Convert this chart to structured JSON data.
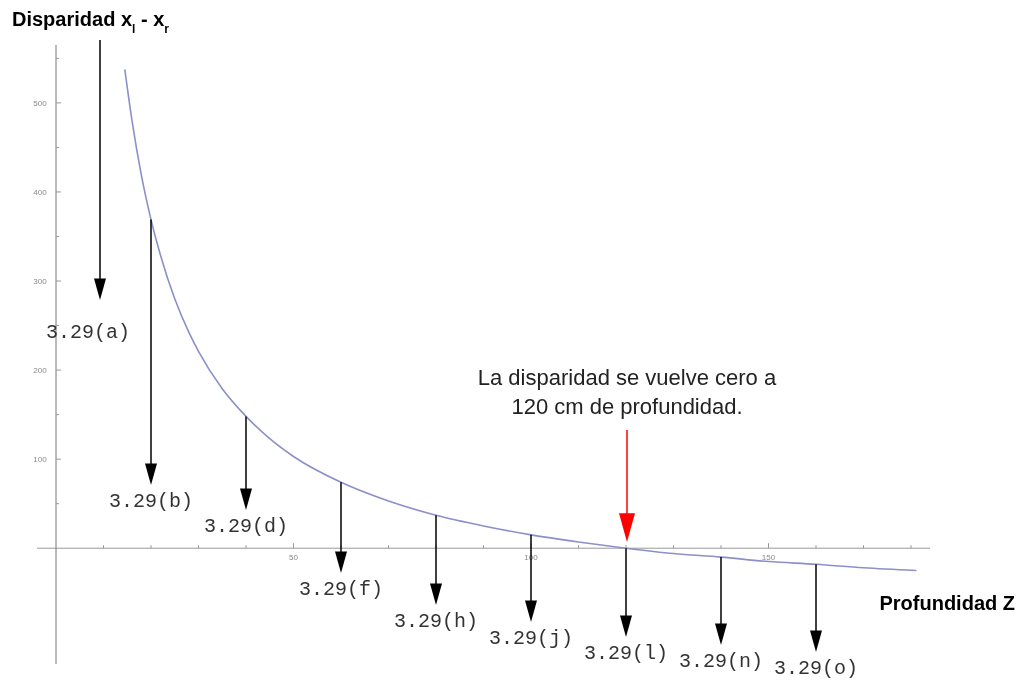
{
  "chart_data": {
    "type": "line",
    "ylabel": "Disparidad x$_{l}$ - x$_{r}$",
    "xlabel": "Profundidad Z",
    "x": [
      14.5,
      16,
      18,
      20,
      22,
      25,
      28,
      30,
      35,
      40,
      45,
      50,
      60,
      70,
      80,
      90,
      100,
      110,
      120,
      130,
      140,
      150,
      160,
      170,
      181
    ],
    "series": [
      {
        "color": "#8c90c8",
        "values": [
          537,
          480,
          418,
          369,
          329,
          280,
          242,
          221,
          179,
          148,
          123,
          103,
          74,
          53,
          37,
          25,
          15,
          7,
          0,
          -6,
          -10,
          -15,
          -18,
          -22,
          -25
        ]
      }
    ],
    "xlim": [
      -4,
      184
    ],
    "ylim": [
      -130,
      565
    ],
    "xticks": [
      {
        "value": 10,
        "label": null
      },
      {
        "value": 20,
        "label": null
      },
      {
        "value": 30,
        "label": null
      },
      {
        "value": 40,
        "label": null
      },
      50,
      {
        "value": 60,
        "label": null
      },
      {
        "value": 70,
        "label": null
      },
      {
        "value": 80,
        "label": null
      },
      {
        "value": 90,
        "label": null
      },
      100,
      {
        "value": 110,
        "label": null
      },
      {
        "value": 120,
        "label": null
      },
      {
        "value": 130,
        "label": null
      },
      {
        "value": 140,
        "label": null
      },
      150,
      {
        "value": 160,
        "label": null
      },
      {
        "value": 170,
        "label": null
      },
      {
        "value": 180,
        "label": null
      }
    ],
    "yticks": [
      {
        "value": 50,
        "label": null
      },
      100,
      {
        "value": 150,
        "label": null
      },
      200,
      {
        "value": 250,
        "label": null
      },
      300,
      {
        "value": 350,
        "label": null
      },
      400,
      {
        "value": 450,
        "label": null
      },
      500,
      {
        "value": 550,
        "label": null
      }
    ],
    "marker": "none",
    "line_style": "solid",
    "annotations": [
      "3.29(a)",
      {
        "text": "3.29(b)",
        "x": 20,
        "y": 369
      },
      {
        "text": "3.29(d)",
        "x": 40,
        "y": 148
      },
      {
        "text": "3.29(f)",
        "x": 60,
        "y": 74
      },
      {
        "text": "3.29(h)",
        "x": 80,
        "y": 37
      },
      {
        "text": "3.29(j)",
        "x": 100,
        "y": 15
      },
      {
        "text": "3.29(l)",
        "x": 120,
        "y": 0
      },
      {
        "text": "3.29(n)",
        "x": 140,
        "y": -10
      },
      {
        "text": "3.29(o)",
        "x": 160,
        "y": -18
      },
      "La disparidad se vuelve cero a\n120 cm de profundidad."
    ]
  }
}
